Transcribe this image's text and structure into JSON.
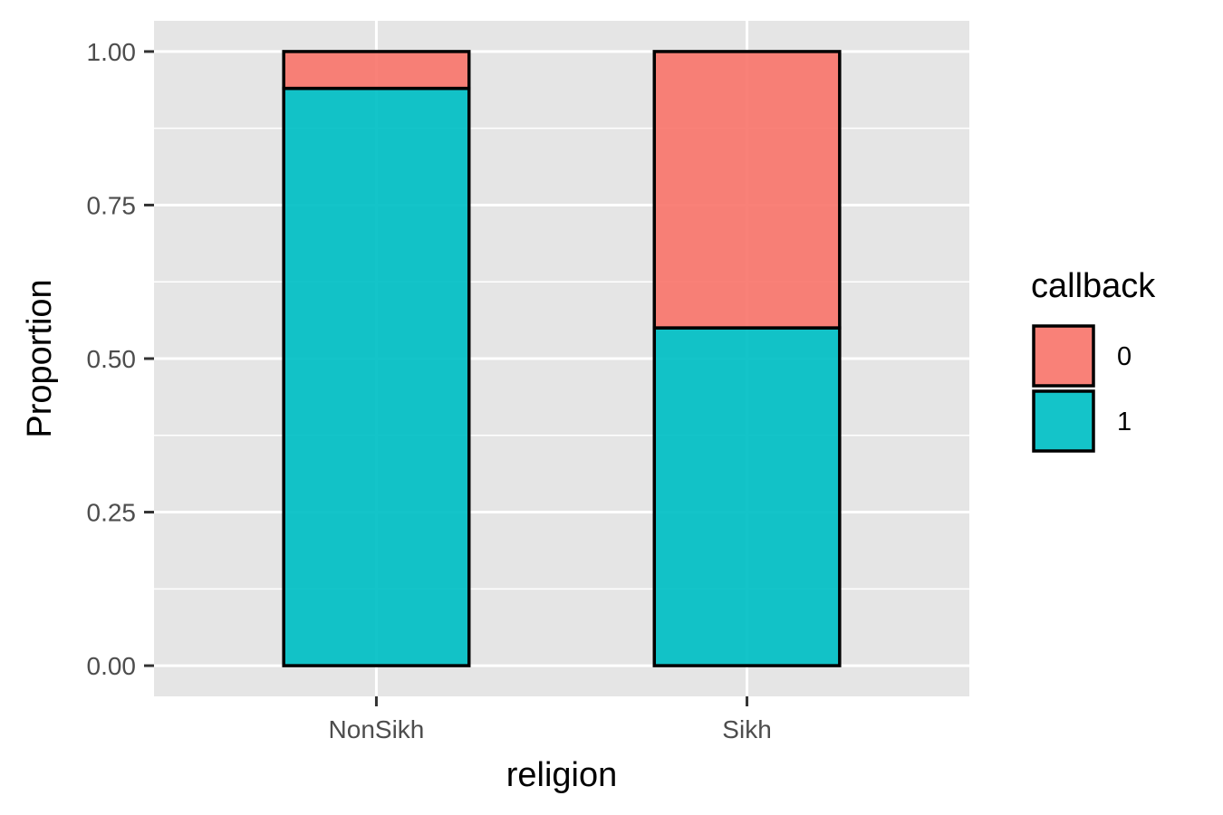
{
  "chart_data": {
    "type": "bar",
    "stacked": true,
    "xlabel": "religion",
    "ylabel": "Proportion",
    "categories": [
      "NonSikh",
      "Sikh"
    ],
    "series": [
      {
        "name": "1",
        "values": [
          0.94,
          0.55
        ],
        "color": "#00BFC4"
      },
      {
        "name": "0",
        "values": [
          0.06,
          0.45
        ],
        "color": "#F8766D"
      }
    ],
    "ylim": [
      -0.05,
      1.05
    ],
    "yticks": [
      0.0,
      0.25,
      0.5,
      0.75,
      1.0
    ],
    "ytick_labels": [
      "0.00",
      "0.25",
      "0.50",
      "0.75",
      "1.00"
    ],
    "grid": true,
    "panel_background": "#E5E5E5",
    "grid_color": "#FFFFFF",
    "bar_outline": "#000000",
    "legend": {
      "title": "callback",
      "position": "right",
      "items": [
        {
          "label": "0",
          "color": "#F8766D"
        },
        {
          "label": "1",
          "color": "#00BFC4"
        }
      ]
    }
  }
}
